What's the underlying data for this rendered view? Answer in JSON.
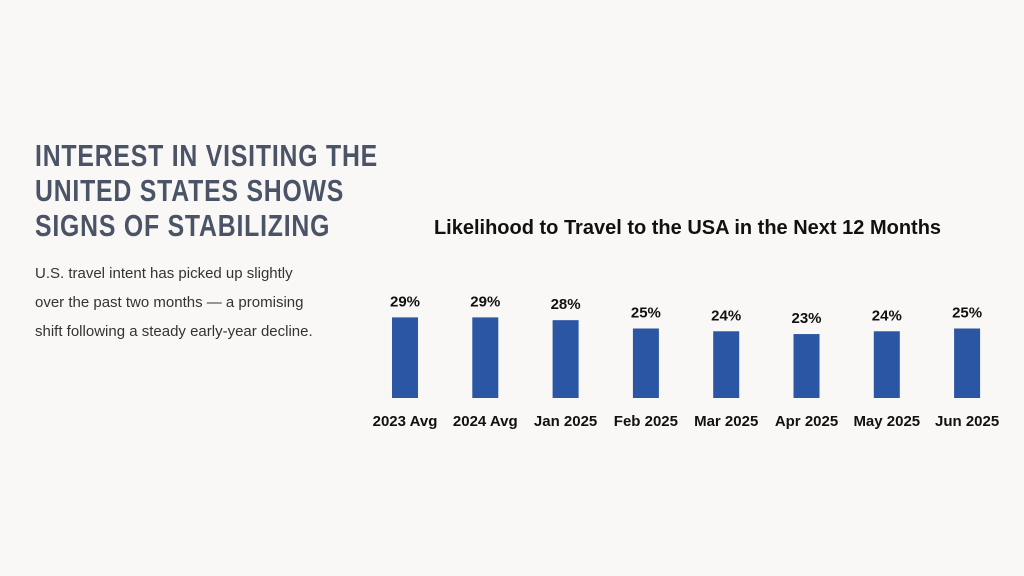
{
  "heading": "INTEREST IN VISITING THE UNITED STATES SHOWS SIGNS OF STABILIZING",
  "body": "U.S. travel intent has picked up slightly over the past two months — a promising shift following a steady early-year decline.",
  "chart_data": {
    "type": "bar",
    "title": "Likelihood to Travel to the USA in the Next 12 Months",
    "categories": [
      "2023 Avg",
      "2024 Avg",
      "Jan 2025",
      "Feb 2025",
      "Mar 2025",
      "Apr 2025",
      "May 2025",
      "Jun 2025"
    ],
    "values": [
      29,
      29,
      28,
      25,
      24,
      23,
      24,
      25
    ],
    "value_labels": [
      "29%",
      "29%",
      "28%",
      "25%",
      "24%",
      "23%",
      "24%",
      "25%"
    ],
    "color": "#2b56a4"
  }
}
